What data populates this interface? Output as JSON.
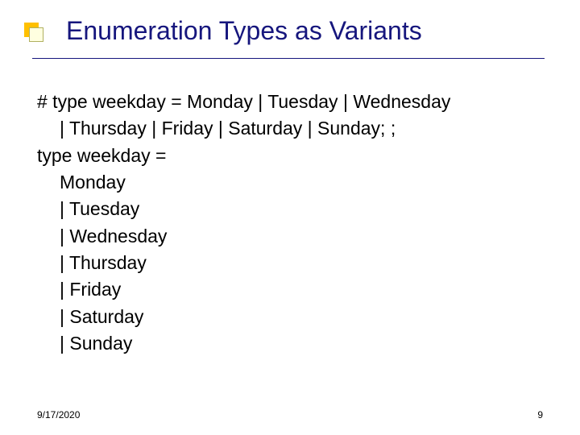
{
  "slide": {
    "title": "Enumeration Types as Variants",
    "title_color": "#16167d",
    "title_fontsize": 32,
    "rule_color": "#16167d",
    "bullet": {
      "back_color": "#ffc000",
      "front_color": "#ffffe0",
      "front_border": "#b0b060"
    },
    "body_fontsize": 23,
    "body_color": "#000000",
    "code_lines": [
      {
        "text": "# type weekday = Monday | Tuesday | Wednesday",
        "indent": 0
      },
      {
        "text": "| Thursday | Friday | Saturday | Sunday; ;",
        "indent": 1
      },
      {
        "text": "type weekday =",
        "indent": 0
      },
      {
        "text": "Monday",
        "indent": 1
      },
      {
        "text": "| Tuesday",
        "indent": 1
      },
      {
        "text": "| Wednesday",
        "indent": 1
      },
      {
        "text": "| Thursday",
        "indent": 1
      },
      {
        "text": "| Friday",
        "indent": 1
      },
      {
        "text": "| Saturday",
        "indent": 1
      },
      {
        "text": "| Sunday",
        "indent": 1
      }
    ],
    "footer_date": "9/17/2020",
    "footer_page": "9",
    "background_color": "#ffffff"
  }
}
